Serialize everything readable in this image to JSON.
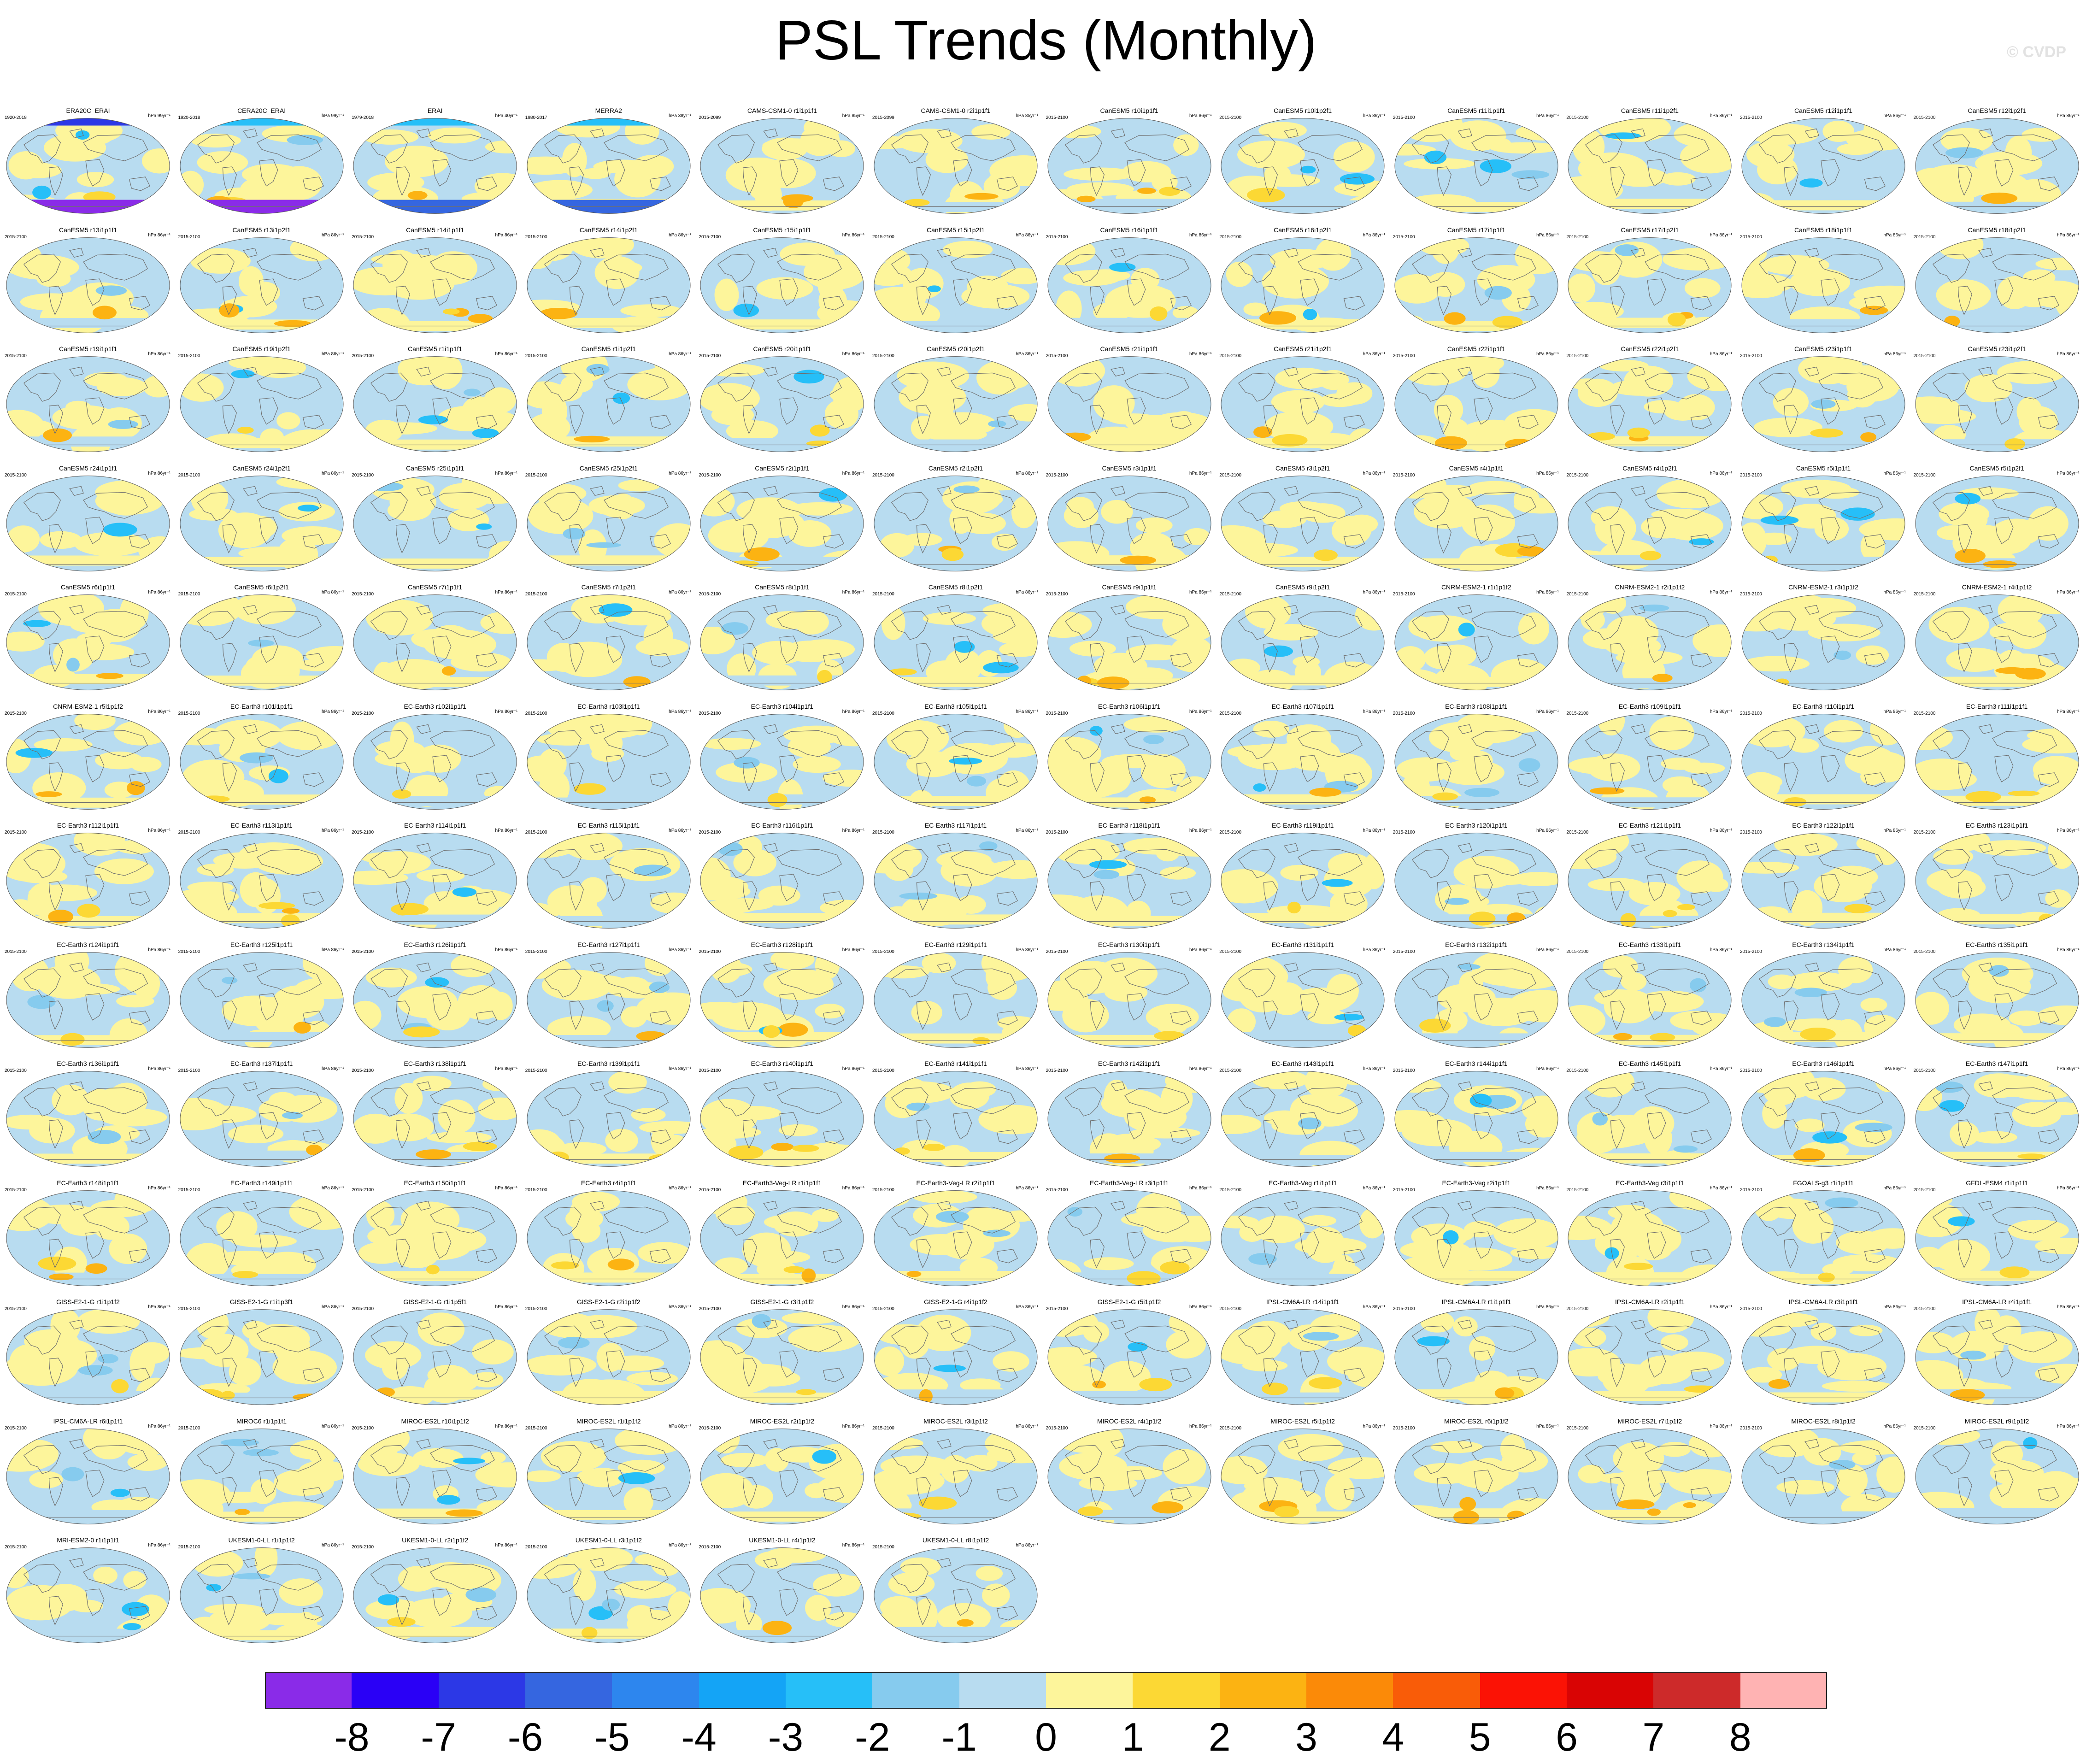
{
  "title": "PSL Trends (Monthly)",
  "watermark": "© CVDP",
  "units": "hPa 86yr⁻¹",
  "colors": {
    "ocean": "#b8dcf0",
    "land_line": "#6f6f6f",
    "colorbar": [
      "#8a2be8",
      "#2a00f6",
      "#2c38e6",
      "#3566e0",
      "#2d86ee",
      "#14a4f6",
      "#26bff8",
      "#86cbee",
      "#b8dcf0",
      "#fdf59b",
      "#fcd834",
      "#fcb312",
      "#fb8a08",
      "#f95c08",
      "#fb1205",
      "#d90404",
      "#cd2a2a",
      "#ffb3b3"
    ]
  },
  "colorbar_labels": [
    "-8",
    "-7",
    "-6",
    "-5",
    "-4",
    "-3",
    "-2",
    "-1",
    "0",
    "1",
    "2",
    "3",
    "4",
    "5",
    "6",
    "7",
    "8"
  ],
  "chart_data": {
    "type": "heatmap",
    "title": "PSL Trends (Monthly)",
    "variable": "PSL",
    "units": "hPa 86yr⁻¹",
    "color_levels": [
      -8,
      -7,
      -6,
      -5,
      -4,
      -3,
      -2,
      -1,
      0,
      1,
      2,
      3,
      4,
      5,
      6,
      7,
      8
    ],
    "panels": [
      {
        "name": "ERA20C_ERAI",
        "years": "1920-2018",
        "units": "hPa 99yr⁻¹"
      },
      {
        "name": "CERA20C_ERAI",
        "years": "1920-2018",
        "units": "hPa 99yr⁻¹"
      },
      {
        "name": "ERAI",
        "years": "1979-2018",
        "units": "hPa 40yr⁻¹"
      },
      {
        "name": "MERRA2",
        "years": "1980-2017",
        "units": "hPa 38yr⁻¹"
      },
      {
        "name": "CAMS-CSM1-0 r1i1p1f1",
        "years": "2015-2099",
        "units": "hPa 85yr⁻¹"
      },
      {
        "name": "CAMS-CSM1-0 r2i1p1f1",
        "years": "2015-2099",
        "units": "hPa 85yr⁻¹"
      },
      {
        "name": "CanESM5 r10i1p1f1",
        "years": "2015-2100",
        "units": "hPa 86yr⁻¹"
      },
      {
        "name": "CanESM5 r10i1p2f1",
        "years": "2015-2100",
        "units": "hPa 86yr⁻¹"
      },
      {
        "name": "CanESM5 r11i1p1f1",
        "years": "2015-2100",
        "units": "hPa 86yr⁻¹"
      },
      {
        "name": "CanESM5 r11i1p2f1",
        "years": "2015-2100",
        "units": "hPa 86yr⁻¹"
      },
      {
        "name": "CanESM5 r12i1p1f1",
        "years": "2015-2100",
        "units": "hPa 86yr⁻¹"
      },
      {
        "name": "CanESM5 r12i1p2f1",
        "years": "2015-2100",
        "units": "hPa 86yr⁻¹"
      },
      {
        "name": "CanESM5 r13i1p1f1",
        "years": "2015-2100",
        "units": "hPa 86yr⁻¹"
      },
      {
        "name": "CanESM5 r13i1p2f1",
        "years": "2015-2100",
        "units": "hPa 86yr⁻¹"
      },
      {
        "name": "CanESM5 r14i1p1f1",
        "years": "2015-2100",
        "units": "hPa 86yr⁻¹"
      },
      {
        "name": "CanESM5 r14i1p2f1",
        "years": "2015-2100",
        "units": "hPa 86yr⁻¹"
      },
      {
        "name": "CanESM5 r15i1p1f1",
        "years": "2015-2100",
        "units": "hPa 86yr⁻¹"
      },
      {
        "name": "CanESM5 r15i1p2f1",
        "years": "2015-2100",
        "units": "hPa 86yr⁻¹"
      },
      {
        "name": "CanESM5 r16i1p1f1",
        "years": "2015-2100",
        "units": "hPa 86yr⁻¹"
      },
      {
        "name": "CanESM5 r16i1p2f1",
        "years": "2015-2100",
        "units": "hPa 86yr⁻¹"
      },
      {
        "name": "CanESM5 r17i1p1f1",
        "years": "2015-2100",
        "units": "hPa 86yr⁻¹"
      },
      {
        "name": "CanESM5 r17i1p2f1",
        "years": "2015-2100",
        "units": "hPa 86yr⁻¹"
      },
      {
        "name": "CanESM5 r18i1p1f1",
        "years": "2015-2100",
        "units": "hPa 86yr⁻¹"
      },
      {
        "name": "CanESM5 r18i1p2f1",
        "years": "2015-2100",
        "units": "hPa 86yr⁻¹"
      },
      {
        "name": "CanESM5 r19i1p1f1",
        "years": "2015-2100",
        "units": "hPa 86yr⁻¹"
      },
      {
        "name": "CanESM5 r19i1p2f1",
        "years": "2015-2100",
        "units": "hPa 86yr⁻¹"
      },
      {
        "name": "CanESM5 r1i1p1f1",
        "years": "2015-2100",
        "units": "hPa 86yr⁻¹"
      },
      {
        "name": "CanESM5 r1i1p2f1",
        "years": "2015-2100",
        "units": "hPa 86yr⁻¹"
      },
      {
        "name": "CanESM5 r20i1p1f1",
        "years": "2015-2100",
        "units": "hPa 86yr⁻¹"
      },
      {
        "name": "CanESM5 r20i1p2f1",
        "years": "2015-2100",
        "units": "hPa 86yr⁻¹"
      },
      {
        "name": "CanESM5 r21i1p1f1",
        "years": "2015-2100",
        "units": "hPa 86yr⁻¹"
      },
      {
        "name": "CanESM5 r21i1p2f1",
        "years": "2015-2100",
        "units": "hPa 86yr⁻¹"
      },
      {
        "name": "CanESM5 r22i1p1f1",
        "years": "2015-2100",
        "units": "hPa 86yr⁻¹"
      },
      {
        "name": "CanESM5 r22i1p2f1",
        "years": "2015-2100",
        "units": "hPa 86yr⁻¹"
      },
      {
        "name": "CanESM5 r23i1p1f1",
        "years": "2015-2100",
        "units": "hPa 86yr⁻¹"
      },
      {
        "name": "CanESM5 r23i1p2f1",
        "years": "2015-2100",
        "units": "hPa 86yr⁻¹"
      },
      {
        "name": "CanESM5 r24i1p1f1",
        "years": "2015-2100",
        "units": "hPa 86yr⁻¹"
      },
      {
        "name": "CanESM5 r24i1p2f1",
        "years": "2015-2100",
        "units": "hPa 86yr⁻¹"
      },
      {
        "name": "CanESM5 r25i1p1f1",
        "years": "2015-2100",
        "units": "hPa 86yr⁻¹"
      },
      {
        "name": "CanESM5 r25i1p2f1",
        "years": "2015-2100",
        "units": "hPa 86yr⁻¹"
      },
      {
        "name": "CanESM5 r2i1p1f1",
        "years": "2015-2100",
        "units": "hPa 86yr⁻¹"
      },
      {
        "name": "CanESM5 r2i1p2f1",
        "years": "2015-2100",
        "units": "hPa 86yr⁻¹"
      },
      {
        "name": "CanESM5 r3i1p1f1",
        "years": "2015-2100",
        "units": "hPa 86yr⁻¹"
      },
      {
        "name": "CanESM5 r3i1p2f1",
        "years": "2015-2100",
        "units": "hPa 86yr⁻¹"
      },
      {
        "name": "CanESM5 r4i1p1f1",
        "years": "2015-2100",
        "units": "hPa 86yr⁻¹"
      },
      {
        "name": "CanESM5 r4i1p2f1",
        "years": "2015-2100",
        "units": "hPa 86yr⁻¹"
      },
      {
        "name": "CanESM5 r5i1p1f1",
        "years": "2015-2100",
        "units": "hPa 86yr⁻¹"
      },
      {
        "name": "CanESM5 r5i1p2f1",
        "years": "2015-2100",
        "units": "hPa 86yr⁻¹"
      },
      {
        "name": "CanESM5 r6i1p1f1",
        "years": "2015-2100",
        "units": "hPa 86yr⁻¹"
      },
      {
        "name": "CanESM5 r6i1p2f1",
        "years": "2015-2100",
        "units": "hPa 86yr⁻¹"
      },
      {
        "name": "CanESM5 r7i1p1f1",
        "years": "2015-2100",
        "units": "hPa 86yr⁻¹"
      },
      {
        "name": "CanESM5 r7i1p2f1",
        "years": "2015-2100",
        "units": "hPa 86yr⁻¹"
      },
      {
        "name": "CanESM5 r8i1p1f1",
        "years": "2015-2100",
        "units": "hPa 86yr⁻¹"
      },
      {
        "name": "CanESM5 r8i1p2f1",
        "years": "2015-2100",
        "units": "hPa 86yr⁻¹"
      },
      {
        "name": "CanESM5 r9i1p1f1",
        "years": "2015-2100",
        "units": "hPa 86yr⁻¹"
      },
      {
        "name": "CanESM5 r9i1p2f1",
        "years": "2015-2100",
        "units": "hPa 86yr⁻¹"
      },
      {
        "name": "CNRM-ESM2-1 r1i1p1f2",
        "years": "2015-2100",
        "units": "hPa 86yr⁻¹"
      },
      {
        "name": "CNRM-ESM2-1 r2i1p1f2",
        "years": "2015-2100",
        "units": "hPa 86yr⁻¹"
      },
      {
        "name": "CNRM-ESM2-1 r3i1p1f2",
        "years": "2015-2100",
        "units": "hPa 86yr⁻¹"
      },
      {
        "name": "CNRM-ESM2-1 r4i1p1f2",
        "years": "2015-2100",
        "units": "hPa 86yr⁻¹"
      },
      {
        "name": "CNRM-ESM2-1 r5i1p1f2",
        "years": "2015-2100",
        "units": "hPa 86yr⁻¹"
      },
      {
        "name": "EC-Earth3 r101i1p1f1",
        "years": "2015-2100",
        "units": "hPa 86yr⁻¹"
      },
      {
        "name": "EC-Earth3 r102i1p1f1",
        "years": "2015-2100",
        "units": "hPa 86yr⁻¹"
      },
      {
        "name": "EC-Earth3 r103i1p1f1",
        "years": "2015-2100",
        "units": "hPa 86yr⁻¹"
      },
      {
        "name": "EC-Earth3 r104i1p1f1",
        "years": "2015-2100",
        "units": "hPa 86yr⁻¹"
      },
      {
        "name": "EC-Earth3 r105i1p1f1",
        "years": "2015-2100",
        "units": "hPa 86yr⁻¹"
      },
      {
        "name": "EC-Earth3 r106i1p1f1",
        "years": "2015-2100",
        "units": "hPa 86yr⁻¹"
      },
      {
        "name": "EC-Earth3 r107i1p1f1",
        "years": "2015-2100",
        "units": "hPa 86yr⁻¹"
      },
      {
        "name": "EC-Earth3 r108i1p1f1",
        "years": "2015-2100",
        "units": "hPa 86yr⁻¹"
      },
      {
        "name": "EC-Earth3 r109i1p1f1",
        "years": "2015-2100",
        "units": "hPa 86yr⁻¹"
      },
      {
        "name": "EC-Earth3 r110i1p1f1",
        "years": "2015-2100",
        "units": "hPa 86yr⁻¹"
      },
      {
        "name": "EC-Earth3 r111i1p1f1",
        "years": "2015-2100",
        "units": "hPa 86yr⁻¹"
      },
      {
        "name": "EC-Earth3 r112i1p1f1",
        "years": "2015-2100",
        "units": "hPa 86yr⁻¹"
      },
      {
        "name": "EC-Earth3 r113i1p1f1",
        "years": "2015-2100",
        "units": "hPa 86yr⁻¹"
      },
      {
        "name": "EC-Earth3 r114i1p1f1",
        "years": "2015-2100",
        "units": "hPa 86yr⁻¹"
      },
      {
        "name": "EC-Earth3 r115i1p1f1",
        "years": "2015-2100",
        "units": "hPa 86yr⁻¹"
      },
      {
        "name": "EC-Earth3 r116i1p1f1",
        "years": "2015-2100",
        "units": "hPa 86yr⁻¹"
      },
      {
        "name": "EC-Earth3 r117i1p1f1",
        "years": "2015-2100",
        "units": "hPa 86yr⁻¹"
      },
      {
        "name": "EC-Earth3 r118i1p1f1",
        "years": "2015-2100",
        "units": "hPa 86yr⁻¹"
      },
      {
        "name": "EC-Earth3 r119i1p1f1",
        "years": "2015-2100",
        "units": "hPa 86yr⁻¹"
      },
      {
        "name": "EC-Earth3 r120i1p1f1",
        "years": "2015-2100",
        "units": "hPa 86yr⁻¹"
      },
      {
        "name": "EC-Earth3 r121i1p1f1",
        "years": "2015-2100",
        "units": "hPa 86yr⁻¹"
      },
      {
        "name": "EC-Earth3 r122i1p1f1",
        "years": "2015-2100",
        "units": "hPa 86yr⁻¹"
      },
      {
        "name": "EC-Earth3 r123i1p1f1",
        "years": "2015-2100",
        "units": "hPa 86yr⁻¹"
      },
      {
        "name": "EC-Earth3 r124i1p1f1",
        "years": "2015-2100",
        "units": "hPa 86yr⁻¹"
      },
      {
        "name": "EC-Earth3 r125i1p1f1",
        "years": "2015-2100",
        "units": "hPa 86yr⁻¹"
      },
      {
        "name": "EC-Earth3 r126i1p1f1",
        "years": "2015-2100",
        "units": "hPa 86yr⁻¹"
      },
      {
        "name": "EC-Earth3 r127i1p1f1",
        "years": "2015-2100",
        "units": "hPa 86yr⁻¹"
      },
      {
        "name": "EC-Earth3 r128i1p1f1",
        "years": "2015-2100",
        "units": "hPa 86yr⁻¹"
      },
      {
        "name": "EC-Earth3 r129i1p1f1",
        "years": "2015-2100",
        "units": "hPa 86yr⁻¹"
      },
      {
        "name": "EC-Earth3 r130i1p1f1",
        "years": "2015-2100",
        "units": "hPa 86yr⁻¹"
      },
      {
        "name": "EC-Earth3 r131i1p1f1",
        "years": "2015-2100",
        "units": "hPa 86yr⁻¹"
      },
      {
        "name": "EC-Earth3 r132i1p1f1",
        "years": "2015-2100",
        "units": "hPa 86yr⁻¹"
      },
      {
        "name": "EC-Earth3 r133i1p1f1",
        "years": "2015-2100",
        "units": "hPa 86yr⁻¹"
      },
      {
        "name": "EC-Earth3 r134i1p1f1",
        "years": "2015-2100",
        "units": "hPa 86yr⁻¹"
      },
      {
        "name": "EC-Earth3 r135i1p1f1",
        "years": "2015-2100",
        "units": "hPa 86yr⁻¹"
      },
      {
        "name": "EC-Earth3 r136i1p1f1",
        "years": "2015-2100",
        "units": "hPa 86yr⁻¹"
      },
      {
        "name": "EC-Earth3 r137i1p1f1",
        "years": "2015-2100",
        "units": "hPa 86yr⁻¹"
      },
      {
        "name": "EC-Earth3 r138i1p1f1",
        "years": "2015-2100",
        "units": "hPa 86yr⁻¹"
      },
      {
        "name": "EC-Earth3 r139i1p1f1",
        "years": "2015-2100",
        "units": "hPa 86yr⁻¹"
      },
      {
        "name": "EC-Earth3 r140i1p1f1",
        "years": "2015-2100",
        "units": "hPa 86yr⁻¹"
      },
      {
        "name": "EC-Earth3 r141i1p1f1",
        "years": "2015-2100",
        "units": "hPa 86yr⁻¹"
      },
      {
        "name": "EC-Earth3 r142i1p1f1",
        "years": "2015-2100",
        "units": "hPa 86yr⁻¹"
      },
      {
        "name": "EC-Earth3 r143i1p1f1",
        "years": "2015-2100",
        "units": "hPa 86yr⁻¹"
      },
      {
        "name": "EC-Earth3 r144i1p1f1",
        "years": "2015-2100",
        "units": "hPa 86yr⁻¹"
      },
      {
        "name": "EC-Earth3 r145i1p1f1",
        "years": "2015-2100",
        "units": "hPa 86yr⁻¹"
      },
      {
        "name": "EC-Earth3 r146i1p1f1",
        "years": "2015-2100",
        "units": "hPa 86yr⁻¹"
      },
      {
        "name": "EC-Earth3 r147i1p1f1",
        "years": "2015-2100",
        "units": "hPa 86yr⁻¹"
      },
      {
        "name": "EC-Earth3 r148i1p1f1",
        "years": "2015-2100",
        "units": "hPa 86yr⁻¹"
      },
      {
        "name": "EC-Earth3 r149i1p1f1",
        "years": "2015-2100",
        "units": "hPa 86yr⁻¹"
      },
      {
        "name": "EC-Earth3 r150i1p1f1",
        "years": "2015-2100",
        "units": "hPa 86yr⁻¹"
      },
      {
        "name": "EC-Earth3 r4i1p1f1",
        "years": "2015-2100",
        "units": "hPa 86yr⁻¹"
      },
      {
        "name": "EC-Earth3-Veg-LR r1i1p1f1",
        "years": "2015-2100",
        "units": "hPa 86yr⁻¹"
      },
      {
        "name": "EC-Earth3-Veg-LR r2i1p1f1",
        "years": "2015-2100",
        "units": "hPa 86yr⁻¹"
      },
      {
        "name": "EC-Earth3-Veg-LR r3i1p1f1",
        "years": "2015-2100",
        "units": "hPa 86yr⁻¹"
      },
      {
        "name": "EC-Earth3-Veg r1i1p1f1",
        "years": "2015-2100",
        "units": "hPa 86yr⁻¹"
      },
      {
        "name": "EC-Earth3-Veg r2i1p1f1",
        "years": "2015-2100",
        "units": "hPa 86yr⁻¹"
      },
      {
        "name": "EC-Earth3-Veg r3i1p1f1",
        "years": "2015-2100",
        "units": "hPa 86yr⁻¹"
      },
      {
        "name": "FGOALS-g3 r1i1p1f1",
        "years": "2015-2100",
        "units": "hPa 86yr⁻¹"
      },
      {
        "name": "GFDL-ESM4 r1i1p1f1",
        "years": "2015-2100",
        "units": "hPa 86yr⁻¹"
      },
      {
        "name": "GISS-E2-1-G r1i1p1f2",
        "years": "2015-2100",
        "units": "hPa 86yr⁻¹"
      },
      {
        "name": "GISS-E2-1-G r1i1p3f1",
        "years": "2015-2100",
        "units": "hPa 86yr⁻¹"
      },
      {
        "name": "GISS-E2-1-G r1i1p5f1",
        "years": "2015-2100",
        "units": "hPa 86yr⁻¹"
      },
      {
        "name": "GISS-E2-1-G r2i1p1f2",
        "years": "2015-2100",
        "units": "hPa 86yr⁻¹"
      },
      {
        "name": "GISS-E2-1-G r3i1p1f2",
        "years": "2015-2100",
        "units": "hPa 86yr⁻¹"
      },
      {
        "name": "GISS-E2-1-G r4i1p1f2",
        "years": "2015-2100",
        "units": "hPa 86yr⁻¹"
      },
      {
        "name": "GISS-E2-1-G r5i1p1f2",
        "years": "2015-2100",
        "units": "hPa 86yr⁻¹"
      },
      {
        "name": "IPSL-CM6A-LR r14i1p1f1",
        "years": "2015-2100",
        "units": "hPa 86yr⁻¹"
      },
      {
        "name": "IPSL-CM6A-LR r1i1p1f1",
        "years": "2015-2100",
        "units": "hPa 86yr⁻¹"
      },
      {
        "name": "IPSL-CM6A-LR r2i1p1f1",
        "years": "2015-2100",
        "units": "hPa 86yr⁻¹"
      },
      {
        "name": "IPSL-CM6A-LR r3i1p1f1",
        "years": "2015-2100",
        "units": "hPa 86yr⁻¹"
      },
      {
        "name": "IPSL-CM6A-LR r4i1p1f1",
        "years": "2015-2100",
        "units": "hPa 86yr⁻¹"
      },
      {
        "name": "IPSL-CM6A-LR r6i1p1f1",
        "years": "2015-2100",
        "units": "hPa 86yr⁻¹"
      },
      {
        "name": "MIROC6 r1i1p1f1",
        "years": "2015-2100",
        "units": "hPa 86yr⁻¹"
      },
      {
        "name": "MIROC-ES2L r10i1p1f2",
        "years": "2015-2100",
        "units": "hPa 86yr⁻¹"
      },
      {
        "name": "MIROC-ES2L r1i1p1f2",
        "years": "2015-2100",
        "units": "hPa 86yr⁻¹"
      },
      {
        "name": "MIROC-ES2L r2i1p1f2",
        "years": "2015-2100",
        "units": "hPa 86yr⁻¹"
      },
      {
        "name": "MIROC-ES2L r3i1p1f2",
        "years": "2015-2100",
        "units": "hPa 86yr⁻¹"
      },
      {
        "name": "MIROC-ES2L r4i1p1f2",
        "years": "2015-2100",
        "units": "hPa 86yr⁻¹"
      },
      {
        "name": "MIROC-ES2L r5i1p1f2",
        "years": "2015-2100",
        "units": "hPa 86yr⁻¹"
      },
      {
        "name": "MIROC-ES2L r6i1p1f2",
        "years": "2015-2100",
        "units": "hPa 86yr⁻¹"
      },
      {
        "name": "MIROC-ES2L r7i1p1f2",
        "years": "2015-2100",
        "units": "hPa 86yr⁻¹"
      },
      {
        "name": "MIROC-ES2L r8i1p1f2",
        "years": "2015-2100",
        "units": "hPa 86yr⁻¹"
      },
      {
        "name": "MIROC-ES2L r9i1p1f2",
        "years": "2015-2100",
        "units": "hPa 86yr⁻¹"
      },
      {
        "name": "MRI-ESM2-0 r1i1p1f1",
        "years": "2015-2100",
        "units": "hPa 86yr⁻¹"
      },
      {
        "name": "UKESM1-0-LL r1i1p1f2",
        "years": "2015-2100",
        "units": "hPa 86yr⁻¹"
      },
      {
        "name": "UKESM1-0-LL r2i1p1f2",
        "years": "2015-2100",
        "units": "hPa 86yr⁻¹"
      },
      {
        "name": "UKESM1-0-LL r3i1p1f2",
        "years": "2015-2100",
        "units": "hPa 86yr⁻¹"
      },
      {
        "name": "UKESM1-0-LL r4i1p1f2",
        "years": "2015-2100",
        "units": "hPa 86yr⁻¹"
      },
      {
        "name": "UKESM1-0-LL r8i1p1f2",
        "years": "2015-2100",
        "units": "hPa 86yr⁻¹"
      }
    ]
  }
}
